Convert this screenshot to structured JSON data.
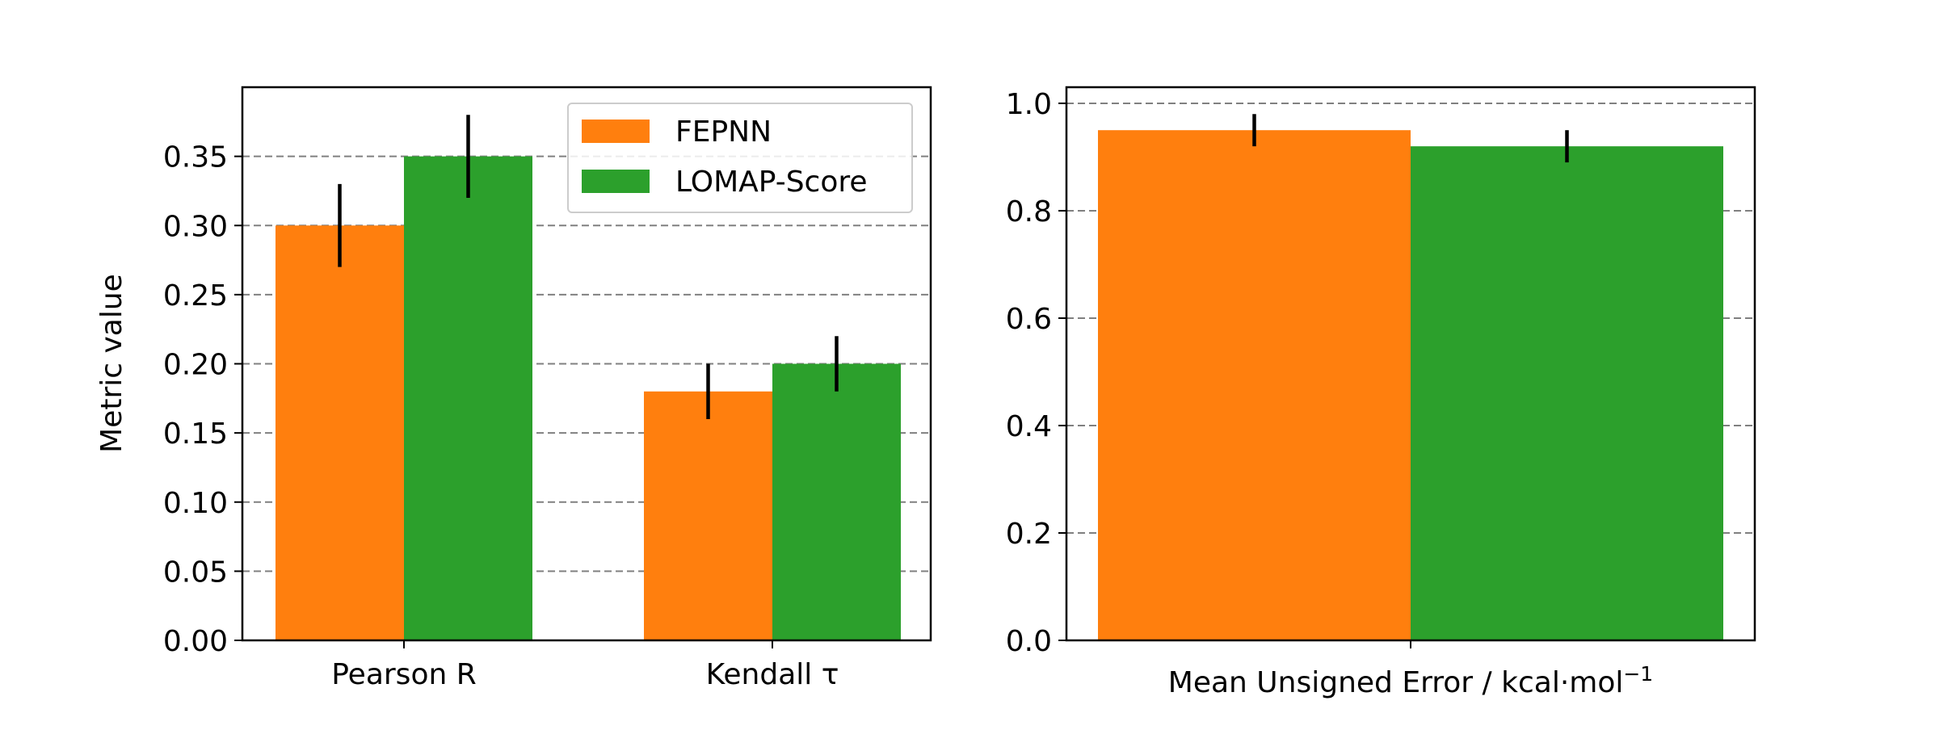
{
  "colors": {
    "fepnn": "#ff7f0e",
    "lomap": "#2ca02c",
    "grid": "#808080",
    "errorbar": "#000000"
  },
  "chart_data": [
    {
      "type": "bar",
      "categories": [
        "Pearson R",
        "Kendall τ"
      ],
      "series": [
        {
          "name": "FEPNN",
          "values": [
            0.3,
            0.18
          ],
          "errors": [
            0.03,
            0.02
          ]
        },
        {
          "name": "LOMAP-Score",
          "values": [
            0.35,
            0.2
          ],
          "errors": [
            0.03,
            0.02
          ]
        }
      ],
      "ylabel": "Metric value",
      "xlabel": "",
      "ylim": [
        0,
        0.4
      ],
      "yticks": [
        "0.00",
        "0.05",
        "0.10",
        "0.15",
        "0.20",
        "0.25",
        "0.30",
        "0.35"
      ],
      "grid": "y-dashed",
      "legend": "upper-right"
    },
    {
      "type": "bar",
      "categories": [
        ""
      ],
      "series": [
        {
          "name": "FEPNN",
          "values": [
            0.95
          ],
          "errors": [
            0.03
          ]
        },
        {
          "name": "LOMAP-Score",
          "values": [
            0.92
          ],
          "errors": [
            0.03
          ]
        }
      ],
      "xlabel": "Mean Unsigned Error / kcal·mol",
      "xlabel_sup": "−1",
      "ylim": [
        0,
        1.03
      ],
      "yticks": [
        "0.0",
        "0.2",
        "0.4",
        "0.6",
        "0.8",
        "1.0"
      ],
      "grid": "y-dashed"
    }
  ]
}
